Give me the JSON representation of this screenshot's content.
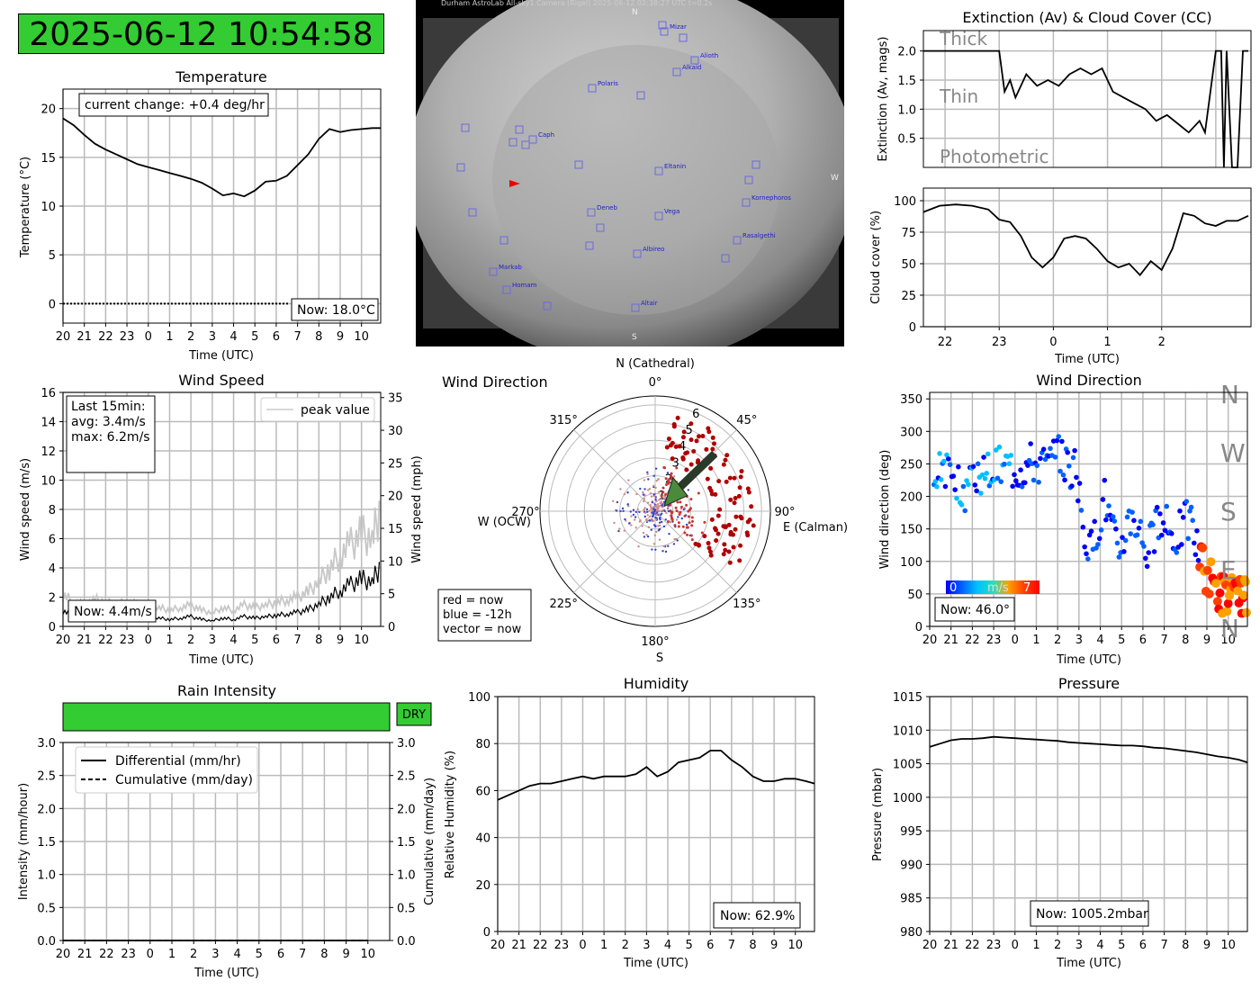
{
  "timestamp": "2025-06-12 10:54:58",
  "tick_hours": [
    "20",
    "21",
    "22",
    "23",
    "0",
    "1",
    "2",
    "3",
    "4",
    "5",
    "6",
    "7",
    "8",
    "9",
    "10"
  ],
  "time_label": "Time (UTC)",
  "colors": {
    "green": "#33cc33",
    "wind_arrow": "#4a8a3a",
    "red": "#cc0000",
    "blue": "#0000ff"
  },
  "skycam": {
    "header": "Durham AstroLab All-sky1 Camera (Rigel)        2025-06-12 02:38:27 UTC        t=0.2s",
    "north": "N",
    "south": "S",
    "west": "W",
    "stars": [
      "Mizar",
      "Alioth",
      "Alkaid",
      "Polaris",
      "Caph",
      "Eltanin",
      "Kornephoros",
      "Deneb",
      "Vega",
      "Rasalgethi",
      "Albireo",
      "Markab",
      "Homam",
      "Altair"
    ]
  },
  "temperature": {
    "title": "Temperature",
    "ylabel": "Temperature (°C)",
    "change": "current change: +0.4 deg/hr",
    "now": "Now: 18.0°C",
    "yticks": [
      "0",
      "5",
      "10",
      "15",
      "20"
    ]
  },
  "extinction": {
    "title": "Extinction (Av) & Cloud Cover (CC)",
    "ylabel": "Extinction (Av, mags)",
    "yticks": [
      "0.5",
      "1.0",
      "1.5",
      "2.0"
    ],
    "bands": [
      "Thick",
      "Thin",
      "Photometric"
    ]
  },
  "cloud": {
    "ylabel": "Cloud cover (%)",
    "xlabel": "Time (UTC)",
    "yticks": [
      "0",
      "25",
      "50",
      "75",
      "100"
    ],
    "xticks": [
      "22",
      "23",
      "0",
      "1",
      "2"
    ]
  },
  "wind_speed": {
    "title": "Wind Speed",
    "ylabel_left": "Wind speed (m/s)",
    "ylabel_right": "Wind speed (mph)",
    "stats": [
      "Last 15min:",
      "avg: 3.4m/s",
      "max: 6.2m/s"
    ],
    "legend": "peak value",
    "now": "Now: 4.4m/s",
    "yticks_left": [
      "0",
      "2",
      "4",
      "6",
      "8",
      "10",
      "12",
      "14",
      "16"
    ],
    "yticks_right": [
      "0",
      "5",
      "10",
      "15",
      "20",
      "25",
      "30",
      "35"
    ]
  },
  "wind_polar": {
    "title": "Wind Direction",
    "north": "N (Cathedral)",
    "east": "E (Calman)",
    "west": "W (OCW)",
    "south": "S",
    "angle_labels": [
      "0°",
      "45°",
      "90°",
      "135°",
      "180°",
      "225°",
      "270°",
      "315°"
    ],
    "rings": [
      "1",
      "2",
      "3",
      "4",
      "5",
      "6"
    ],
    "legend": [
      "red = now",
      "blue = -12h",
      "vector = now"
    ]
  },
  "wind_dir": {
    "title": "Wind Direction",
    "ylabel": "Wind direction (deg)",
    "yticks": [
      "0",
      "50",
      "100",
      "150",
      "200",
      "250",
      "300",
      "350"
    ],
    "compass": [
      "N",
      "W",
      "S",
      "E",
      "N"
    ],
    "cbar_min": "0",
    "cbar_unit": "m/s",
    "cbar_max": "7",
    "now": "Now: 46.0°"
  },
  "rain": {
    "title": "Rain Intensity",
    "status": "DRY",
    "ylabel_left": "Intensity (mm/hour)",
    "ylabel_right": "Cumulative (mm/day)",
    "legend": [
      "Differential (mm/hr)",
      "Cumulative (mm/day)"
    ],
    "yticks": [
      "0.0",
      "0.5",
      "1.0",
      "1.5",
      "2.0",
      "2.5",
      "3.0"
    ]
  },
  "humidity": {
    "title": "Humidity",
    "ylabel": "Relative Humidity (%)",
    "yticks": [
      "0",
      "20",
      "40",
      "60",
      "80",
      "100"
    ],
    "now": "Now: 62.9%"
  },
  "pressure": {
    "title": "Pressure",
    "ylabel": "Pressure (mbar)",
    "yticks": [
      "980",
      "985",
      "990",
      "995",
      "1000",
      "1005",
      "1010",
      "1015"
    ],
    "now": "Now: 1005.2mbar"
  },
  "chart_data": [
    {
      "type": "line",
      "title": "Temperature",
      "ylabel": "Temperature (°C)",
      "xlabel": "Time (UTC)",
      "ylim": [
        -2,
        22
      ],
      "x": [
        20,
        20.5,
        21,
        21.5,
        22,
        22.5,
        23,
        23.5,
        24,
        24.5,
        25,
        25.5,
        26,
        26.5,
        27,
        27.5,
        28,
        28.5,
        29,
        29.5,
        30,
        30.5,
        31,
        31.5,
        32,
        32.5,
        33,
        33.5,
        34,
        34.5,
        34.9
      ],
      "y": [
        19,
        18.3,
        17.3,
        16.4,
        15.8,
        15.3,
        14.8,
        14.3,
        14.0,
        13.7,
        13.4,
        13.1,
        12.8,
        12.4,
        11.8,
        11.1,
        11.3,
        11.0,
        11.6,
        12.5,
        12.6,
        13.1,
        14.2,
        15.3,
        16.9,
        17.9,
        17.6,
        17.8,
        17.9,
        18.0,
        18.0
      ]
    },
    {
      "type": "line",
      "title": "Extinction (Av) & Cloud Cover (CC)",
      "ylabel": "Extinction (Av, mags)",
      "ylim": [
        0,
        2.35
      ],
      "x": [
        21.6,
        22.5,
        23,
        23.1,
        23.2,
        23.3,
        23.5,
        23.7,
        23.9,
        24.1,
        24.3,
        24.5,
        24.7,
        24.9,
        25.1,
        25.3,
        25.5,
        25.7,
        25.9,
        26.1,
        26.3,
        26.5,
        26.7,
        26.8,
        27.0,
        27.1,
        27.15,
        27.2,
        27.3,
        27.4,
        27.5,
        27.6
      ],
      "y": [
        2.0,
        2.0,
        2.0,
        1.3,
        1.5,
        1.2,
        1.6,
        1.4,
        1.5,
        1.4,
        1.6,
        1.7,
        1.6,
        1.7,
        1.3,
        1.2,
        1.1,
        1.0,
        0.8,
        0.9,
        0.75,
        0.6,
        0.8,
        0.6,
        2.0,
        2.0,
        0,
        2.0,
        0,
        0,
        2.0,
        2.0
      ]
    },
    {
      "type": "line",
      "ylabel": "Cloud cover (%)",
      "xlabel": "Time (UTC)",
      "ylim": [
        0,
        110
      ],
      "x": [
        21.6,
        21.9,
        22.2,
        22.5,
        22.8,
        23.0,
        23.2,
        23.4,
        23.6,
        23.8,
        24.0,
        24.2,
        24.4,
        24.6,
        24.8,
        25.0,
        25.2,
        25.4,
        25.6,
        25.8,
        26.0,
        26.2,
        26.4,
        26.6,
        26.8,
        27.0,
        27.2,
        27.4,
        27.6
      ],
      "y": [
        91,
        96,
        97,
        96,
        93,
        85,
        83,
        72,
        55,
        47,
        55,
        70,
        72,
        70,
        62,
        52,
        47,
        50,
        41,
        52,
        45,
        62,
        90,
        88,
        82,
        80,
        84,
        84,
        88
      ]
    },
    {
      "type": "line",
      "title": "Wind Speed",
      "ylabel": "Wind speed (m/s)",
      "xlabel": "Time (UTC)",
      "ylim": [
        0,
        16
      ],
      "x": [
        20,
        20.5,
        21,
        21.5,
        22,
        22.5,
        23,
        23.5,
        24,
        24.5,
        25,
        25.5,
        26,
        26.5,
        27,
        27.5,
        28,
        28.5,
        29,
        29.5,
        30,
        30.5,
        31,
        31.5,
        32,
        32.5,
        33,
        33.5,
        34,
        34.5,
        34.9
      ],
      "y": [
        1.1,
        0.8,
        0.7,
        0.9,
        0.8,
        0.7,
        0.8,
        0.7,
        0.5,
        0.6,
        0.5,
        0.6,
        0.7,
        0.5,
        0.4,
        0.6,
        0.5,
        0.7,
        0.6,
        0.7,
        0.8,
        0.9,
        1.0,
        1.2,
        1.6,
        2.1,
        2.6,
        3.0,
        3.4,
        3.2,
        4.4
      ]
    },
    {
      "type": "scatter",
      "title": "Wind Direction",
      "ylabel": "Wind direction (deg)",
      "xlabel": "Time (UTC)",
      "ylim": [
        0,
        360
      ],
      "x": [
        20.2,
        20.8,
        21.5,
        22.2,
        22.8,
        23.5,
        24.2,
        24.8,
        25.5,
        26.2,
        26.8,
        27.5,
        28.2,
        28.8,
        29.5,
        30.2,
        30.8,
        31.5,
        32.2,
        32.8,
        33.5,
        34.0,
        34.5,
        34.9
      ],
      "y": [
        230,
        240,
        210,
        215,
        240,
        250,
        245,
        255,
        250,
        260,
        240,
        110,
        200,
        115,
        180,
        120,
        160,
        140,
        170,
        90,
        60,
        45,
        40,
        46
      ]
    },
    {
      "type": "line",
      "title": "Rain Intensity",
      "ylabel": "Intensity (mm/hour)",
      "xlabel": "Time (UTC)",
      "ylim": [
        0,
        3
      ],
      "series": [
        {
          "name": "Differential (mm/hr)",
          "values": [
            0,
            0,
            0,
            0,
            0,
            0,
            0,
            0,
            0,
            0,
            0,
            0,
            0,
            0,
            0
          ]
        },
        {
          "name": "Cumulative (mm/day)",
          "values": [
            0,
            0,
            0,
            0,
            0,
            0,
            0,
            0,
            0,
            0,
            0,
            0,
            0,
            0,
            0
          ]
        }
      ],
      "categories": [
        "20",
        "21",
        "22",
        "23",
        "0",
        "1",
        "2",
        "3",
        "4",
        "5",
        "6",
        "7",
        "8",
        "9",
        "10"
      ]
    },
    {
      "type": "line",
      "title": "Humidity",
      "ylabel": "Relative Humidity (%)",
      "xlabel": "Time (UTC)",
      "ylim": [
        0,
        100
      ],
      "x": [
        20,
        20.5,
        21,
        21.5,
        22,
        22.5,
        23,
        23.5,
        24,
        24.5,
        25,
        25.5,
        26,
        26.5,
        27,
        27.5,
        28,
        28.5,
        29,
        29.5,
        30,
        30.5,
        31,
        31.5,
        32,
        32.5,
        33,
        33.5,
        34,
        34.5,
        34.9
      ],
      "y": [
        56,
        58,
        60,
        62,
        63,
        63,
        64,
        65,
        66,
        65,
        66,
        66,
        66,
        67,
        70,
        66,
        68,
        72,
        73,
        74,
        77,
        77,
        73,
        70,
        66,
        64,
        64,
        65,
        65,
        64,
        63
      ]
    },
    {
      "type": "line",
      "title": "Pressure",
      "ylabel": "Pressure (mbar)",
      "xlabel": "Time (UTC)",
      "ylim": [
        980,
        1015
      ],
      "x": [
        20,
        20.5,
        21,
        21.5,
        22,
        22.5,
        23,
        23.5,
        24,
        24.5,
        25,
        25.5,
        26,
        26.5,
        27,
        27.5,
        28,
        28.5,
        29,
        29.5,
        30,
        30.5,
        31,
        31.5,
        32,
        32.5,
        33,
        33.5,
        34,
        34.5,
        34.9
      ],
      "y": [
        1007.5,
        1008,
        1008.5,
        1008.7,
        1008.7,
        1008.8,
        1009,
        1008.9,
        1008.8,
        1008.7,
        1008.6,
        1008.5,
        1008.4,
        1008.2,
        1008.1,
        1008.0,
        1007.9,
        1007.8,
        1007.7,
        1007.7,
        1007.6,
        1007.4,
        1007.3,
        1007.1,
        1006.9,
        1006.7,
        1006.4,
        1006.1,
        1005.9,
        1005.6,
        1005.2
      ]
    }
  ]
}
